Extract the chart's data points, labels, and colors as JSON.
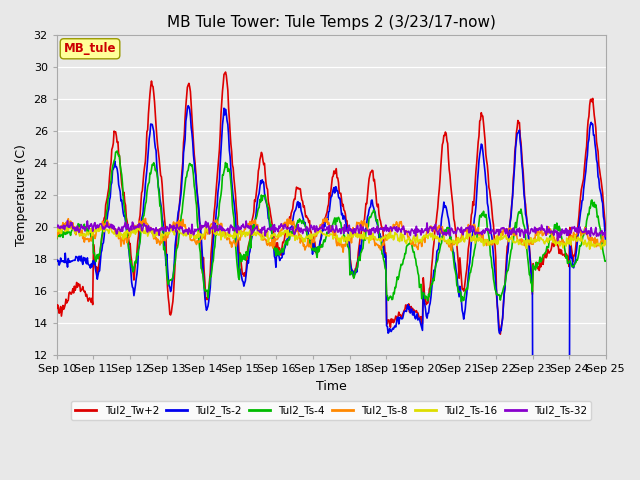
{
  "title": "MB Tule Tower: Tule Temps 2 (3/23/17-now)",
  "xlabel": "Time",
  "ylabel": "Temperature (C)",
  "ylim": [
    12,
    32
  ],
  "yticks": [
    12,
    14,
    16,
    18,
    20,
    22,
    24,
    26,
    28,
    30,
    32
  ],
  "x_labels": [
    "Sep 10",
    "Sep 11",
    "Sep 12",
    "Sep 13",
    "Sep 14",
    "Sep 15",
    "Sep 16",
    "Sep 17",
    "Sep 18",
    "Sep 19",
    "Sep 20",
    "Sep 21",
    "Sep 22",
    "Sep 23",
    "Sep 24",
    "Sep 25"
  ],
  "series": [
    {
      "label": "Tul2_Tw+2",
      "color": "#dd0000",
      "lw": 1.2
    },
    {
      "label": "Tul2_Ts-2",
      "color": "#0000ee",
      "lw": 1.2
    },
    {
      "label": "Tul2_Ts-4",
      "color": "#00bb00",
      "lw": 1.2
    },
    {
      "label": "Tul2_Ts-8",
      "color": "#ff8800",
      "lw": 1.2
    },
    {
      "label": "Tul2_Ts-16",
      "color": "#dddd00",
      "lw": 1.2
    },
    {
      "label": "Tul2_Ts-32",
      "color": "#8800cc",
      "lw": 1.2
    }
  ],
  "annotation_text": "MB_tule",
  "plot_bg_color": "#e8e8e8",
  "grid_color": "#ffffff",
  "title_fontsize": 11,
  "figsize": [
    6.4,
    4.8
  ],
  "dpi": 100
}
